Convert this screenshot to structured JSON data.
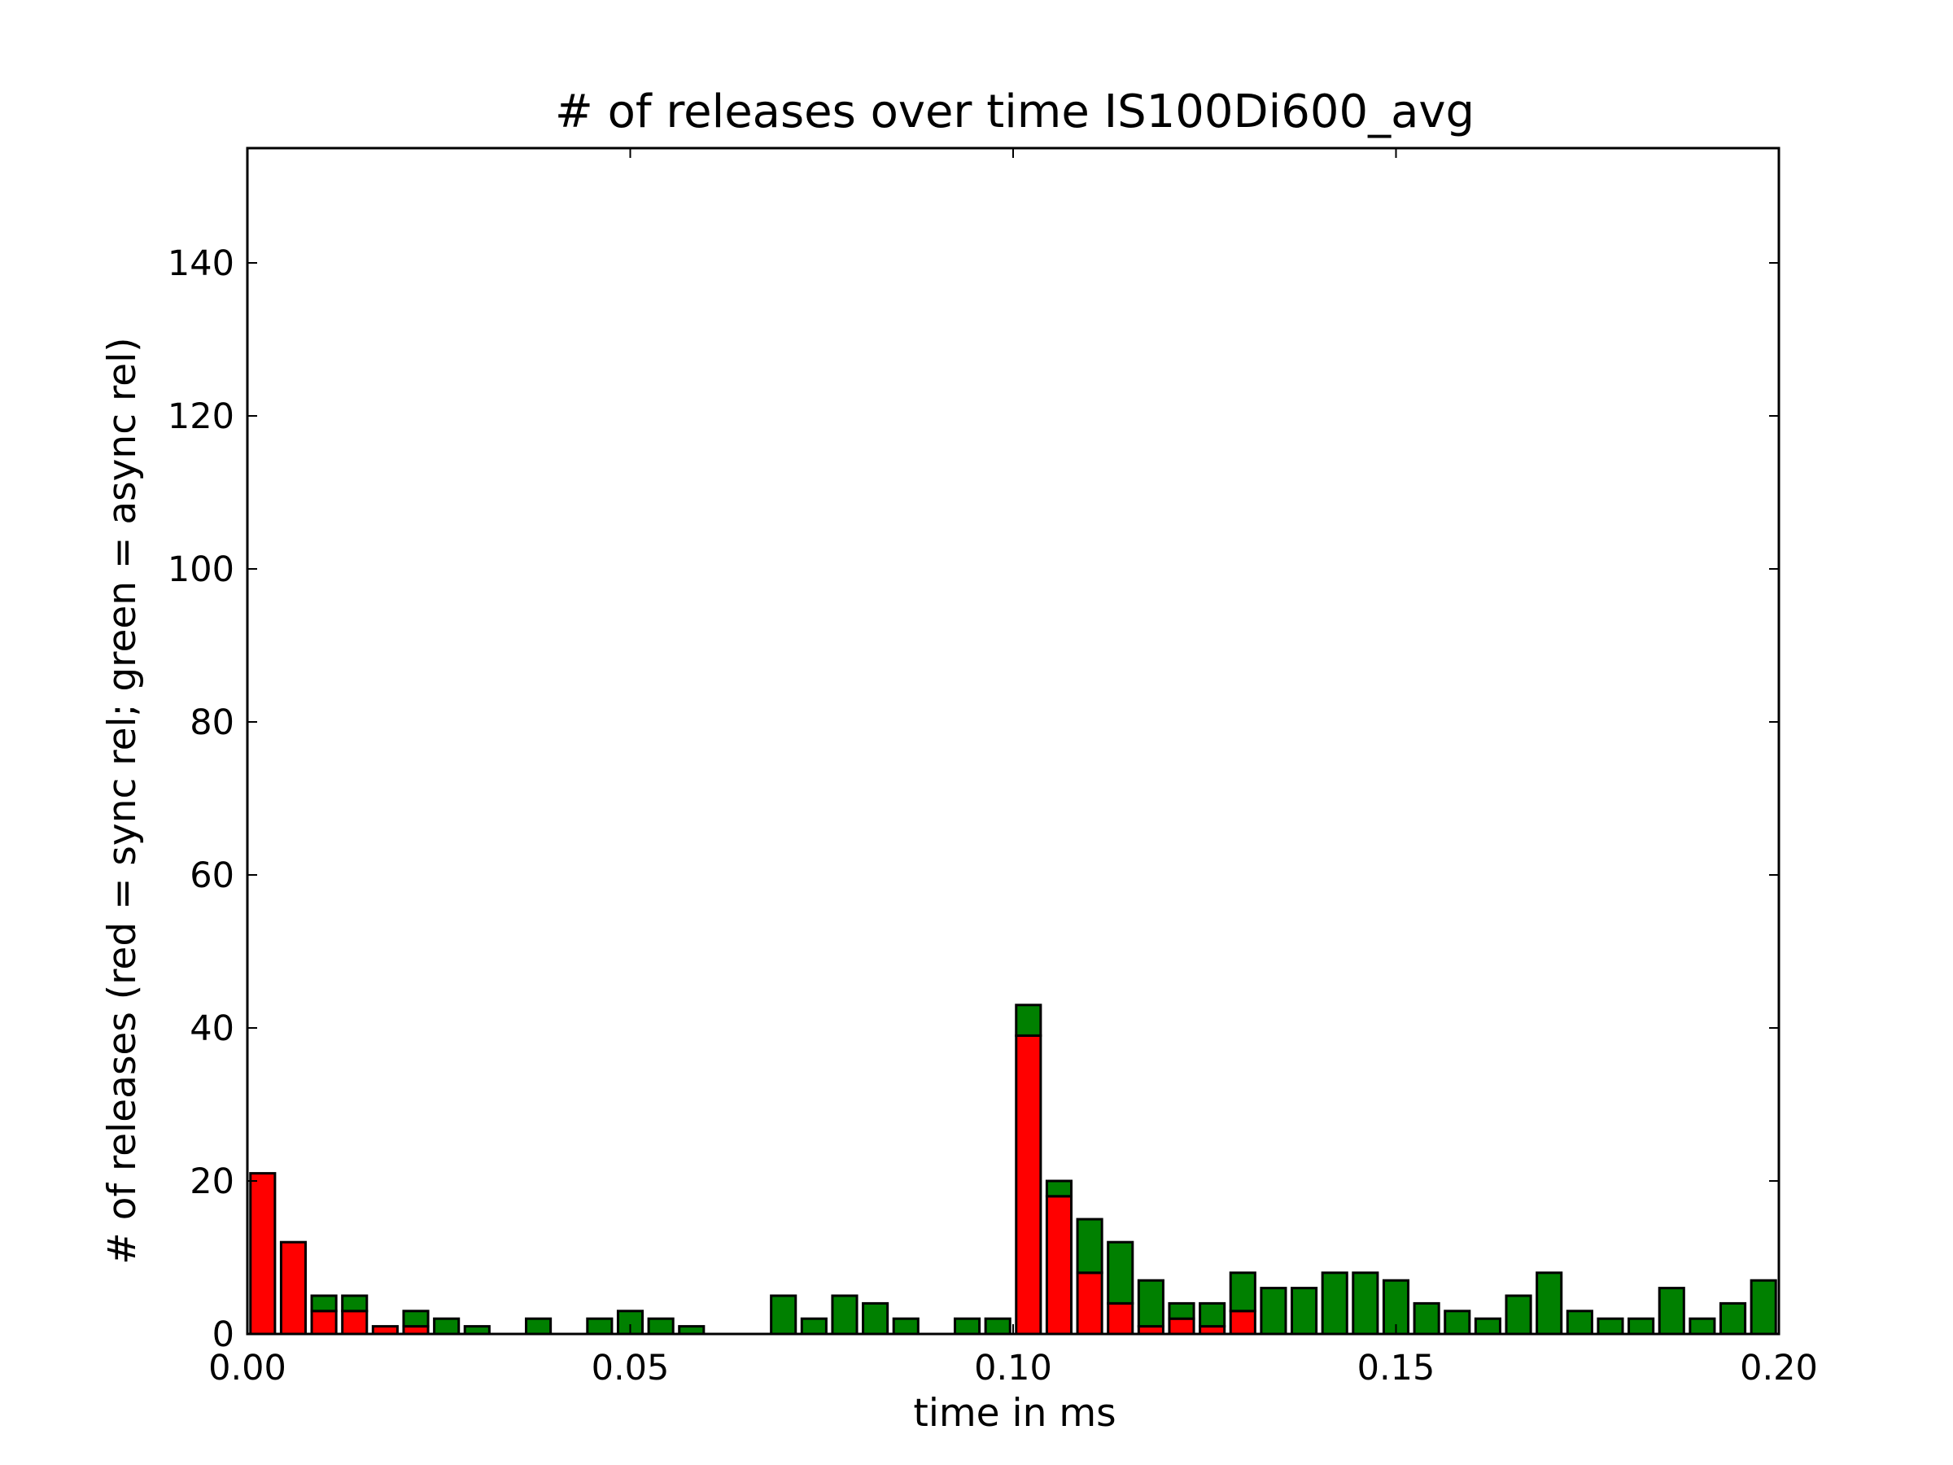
{
  "chart_data": {
    "type": "bar",
    "stacked": true,
    "title": "# of releases over time IS100Di600_avg",
    "xlabel": "time in ms",
    "ylabel": "# of releases (red = sync rel; green = async rel)",
    "xlim": [
      0.0,
      0.2
    ],
    "ylim": [
      0,
      155
    ],
    "xticks": [
      "0.00",
      "0.05",
      "0.10",
      "0.15",
      "0.20"
    ],
    "yticks": [
      "0",
      "20",
      "40",
      "60",
      "80",
      "100",
      "120",
      "140"
    ],
    "bin_width": 0.004,
    "x": [
      0.002,
      0.006,
      0.01,
      0.014,
      0.018,
      0.022,
      0.026,
      0.03,
      0.034,
      0.038,
      0.042,
      0.046,
      0.05,
      0.054,
      0.058,
      0.062,
      0.066,
      0.07,
      0.074,
      0.078,
      0.082,
      0.086,
      0.09,
      0.094,
      0.098,
      0.102,
      0.106,
      0.11,
      0.114,
      0.118,
      0.122,
      0.126,
      0.13,
      0.134,
      0.138,
      0.142,
      0.146,
      0.15,
      0.154,
      0.158,
      0.162,
      0.166,
      0.17,
      0.174,
      0.178,
      0.182,
      0.186,
      0.19,
      0.194,
      0.198
    ],
    "series": [
      {
        "name": "sync rel",
        "color": "#ff0000",
        "values": [
          21,
          12,
          3,
          3,
          1,
          1,
          0,
          0,
          0,
          0,
          0,
          0,
          0,
          0,
          0,
          0,
          0,
          0,
          0,
          0,
          0,
          0,
          0,
          0,
          0,
          39,
          18,
          8,
          4,
          1,
          2,
          1,
          3,
          0,
          0,
          0,
          0,
          0,
          0,
          0,
          0,
          0,
          0,
          0,
          0,
          0,
          0,
          0,
          0,
          0
        ]
      },
      {
        "name": "async rel",
        "color": "#008000",
        "values": [
          0,
          0,
          2,
          2,
          0,
          2,
          2,
          1,
          0,
          2,
          0,
          2,
          3,
          2,
          1,
          0,
          0,
          5,
          2,
          5,
          4,
          2,
          0,
          2,
          2,
          4,
          2,
          7,
          8,
          6,
          2,
          3,
          5,
          6,
          6,
          8,
          8,
          7,
          4,
          3,
          2,
          5,
          8,
          3,
          2,
          2,
          6,
          2,
          4,
          7
        ]
      }
    ]
  }
}
